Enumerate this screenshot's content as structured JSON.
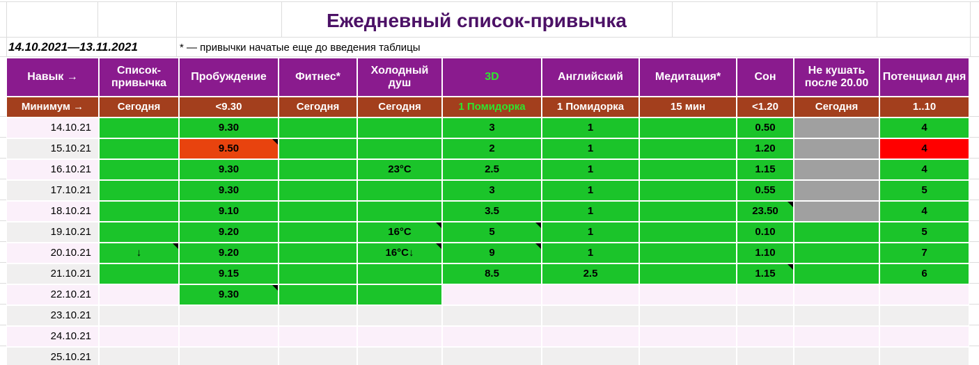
{
  "page": {
    "title": "Ежедневный список-привычка",
    "date_range": "14.10.2021—13.11.2021",
    "footnote": "* — привычки начатые еще до введения таблицы"
  },
  "colors": {
    "header_bg": "#8a1b8e",
    "minimum_bg": "#a33f1d",
    "done_green": "#1bc42a",
    "fail_orange": "#e8430e",
    "fail_red": "#ff0000",
    "na_gray": "#a0a0a0",
    "row_pink": "#fbf0fa",
    "row_gray": "#f0efef",
    "accent_green_text": "#2ee52e",
    "title_purple": "#4c1166"
  },
  "table": {
    "header": [
      "Навык →",
      "Список-привычка",
      "Пробуждение",
      "Фитнес*",
      "Холодный душ",
      "3D",
      "Английский",
      "Медитация*",
      "Сон",
      "Не кушать после 20.00",
      "Потенциал дня"
    ],
    "minimum": [
      "Минимум →",
      "Сегодня",
      "<9.30",
      "Сегодня",
      "Сегодня",
      "1 Помидорка",
      "1 Помидорка",
      "15 мин",
      "<1.20",
      "Сегодня",
      "1..10"
    ],
    "accent_col_index": 5,
    "rows": [
      {
        "date": "14.10.21",
        "alt": "pink",
        "cells": [
          {
            "bg": "green"
          },
          {
            "t": "9.30",
            "bg": "green"
          },
          {
            "bg": "green"
          },
          {
            "bg": "green"
          },
          {
            "t": "3",
            "bg": "green"
          },
          {
            "t": "1",
            "bg": "green"
          },
          {
            "bg": "green"
          },
          {
            "t": "0.50",
            "bg": "green"
          },
          {
            "bg": "gray"
          },
          {
            "t": "4",
            "bg": "green"
          }
        ]
      },
      {
        "date": "15.10.21",
        "alt": "gray",
        "cells": [
          {
            "bg": "green"
          },
          {
            "t": "9.50",
            "bg": "orange",
            "n": true
          },
          {
            "bg": "green"
          },
          {
            "bg": "green"
          },
          {
            "t": "2",
            "bg": "green"
          },
          {
            "t": "1",
            "bg": "green"
          },
          {
            "bg": "green"
          },
          {
            "t": "1.20",
            "bg": "green"
          },
          {
            "bg": "gray"
          },
          {
            "t": "4",
            "bg": "red"
          }
        ]
      },
      {
        "date": "16.10.21",
        "alt": "pink",
        "cells": [
          {
            "bg": "green"
          },
          {
            "t": "9.30",
            "bg": "green"
          },
          {
            "bg": "green"
          },
          {
            "t": "23°C",
            "bg": "green"
          },
          {
            "t": "2.5",
            "bg": "green"
          },
          {
            "t": "1",
            "bg": "green"
          },
          {
            "bg": "green"
          },
          {
            "t": "1.15",
            "bg": "green"
          },
          {
            "bg": "gray"
          },
          {
            "t": "4",
            "bg": "green"
          }
        ]
      },
      {
        "date": "17.10.21",
        "alt": "gray",
        "cells": [
          {
            "bg": "green"
          },
          {
            "t": "9.30",
            "bg": "green"
          },
          {
            "bg": "green"
          },
          {
            "bg": "green"
          },
          {
            "t": "3",
            "bg": "green"
          },
          {
            "t": "1",
            "bg": "green"
          },
          {
            "bg": "green"
          },
          {
            "t": "0.55",
            "bg": "green"
          },
          {
            "bg": "gray"
          },
          {
            "t": "5",
            "bg": "green"
          }
        ]
      },
      {
        "date": "18.10.21",
        "alt": "pink",
        "cells": [
          {
            "bg": "green"
          },
          {
            "t": "9.10",
            "bg": "green"
          },
          {
            "bg": "green"
          },
          {
            "bg": "green"
          },
          {
            "t": "3.5",
            "bg": "green"
          },
          {
            "t": "1",
            "bg": "green"
          },
          {
            "bg": "green"
          },
          {
            "t": "23.50",
            "bg": "green",
            "n": true
          },
          {
            "bg": "gray"
          },
          {
            "t": "4",
            "bg": "green"
          }
        ]
      },
      {
        "date": "19.10.21",
        "alt": "gray",
        "cells": [
          {
            "bg": "green"
          },
          {
            "t": "9.20",
            "bg": "green"
          },
          {
            "bg": "green"
          },
          {
            "t": "16°C",
            "bg": "green",
            "n": true
          },
          {
            "t": "5",
            "bg": "green",
            "n": true
          },
          {
            "t": "1",
            "bg": "green"
          },
          {
            "bg": "green"
          },
          {
            "t": "0.10",
            "bg": "green"
          },
          {
            "bg": "green"
          },
          {
            "t": "5",
            "bg": "green"
          }
        ]
      },
      {
        "date": "20.10.21",
        "alt": "pink",
        "cells": [
          {
            "t": "↓",
            "bg": "green",
            "n": true
          },
          {
            "t": "9.20",
            "bg": "green"
          },
          {
            "bg": "green"
          },
          {
            "t": "16°C↓",
            "bg": "green",
            "n": true
          },
          {
            "t": "9",
            "bg": "green",
            "n": true
          },
          {
            "t": "1",
            "bg": "green"
          },
          {
            "bg": "green"
          },
          {
            "t": "1.10",
            "bg": "green"
          },
          {
            "bg": "green"
          },
          {
            "t": "7",
            "bg": "green"
          }
        ]
      },
      {
        "date": "21.10.21",
        "alt": "gray",
        "cells": [
          {
            "bg": "green"
          },
          {
            "t": "9.15",
            "bg": "green"
          },
          {
            "bg": "green"
          },
          {
            "bg": "green"
          },
          {
            "t": "8.5",
            "bg": "green"
          },
          {
            "t": "2.5",
            "bg": "green"
          },
          {
            "bg": "green"
          },
          {
            "t": "1.15",
            "bg": "green",
            "n": true
          },
          {
            "bg": "green"
          },
          {
            "t": "6",
            "bg": "green"
          }
        ]
      },
      {
        "date": "22.10.21",
        "alt": "pink",
        "cells": [
          {},
          {
            "t": "9.30",
            "bg": "green",
            "n": true
          },
          {
            "bg": "green"
          },
          {
            "bg": "green"
          },
          {},
          {},
          {},
          {},
          {},
          {}
        ]
      },
      {
        "date": "23.10.21",
        "alt": "gray",
        "cells": [
          {},
          {},
          {},
          {},
          {},
          {},
          {},
          {},
          {},
          {}
        ]
      },
      {
        "date": "24.10.21",
        "alt": "pink",
        "cells": [
          {},
          {},
          {},
          {},
          {},
          {},
          {},
          {},
          {},
          {}
        ]
      },
      {
        "date": "25.10.21",
        "alt": "gray",
        "cells": [
          {},
          {},
          {},
          {},
          {},
          {},
          {},
          {},
          {},
          {}
        ]
      }
    ]
  }
}
